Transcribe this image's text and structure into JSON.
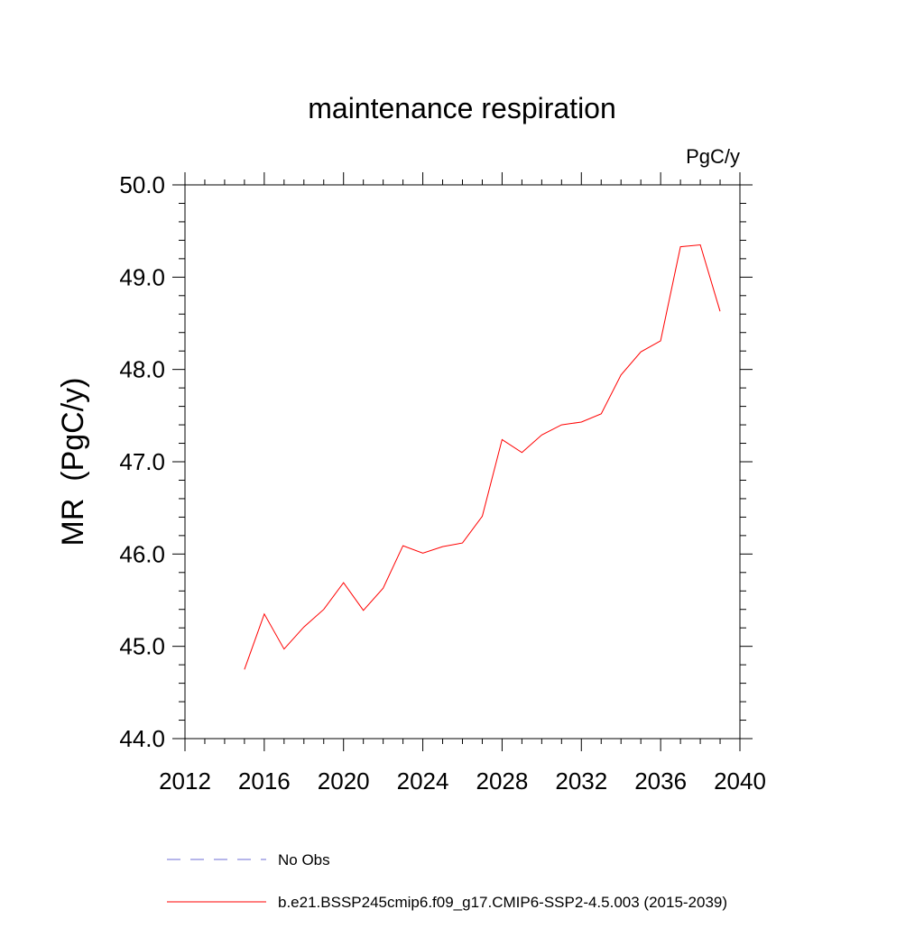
{
  "chart_data": {
    "type": "line",
    "title": "maintenance respiration",
    "units_label": "PgC/y",
    "xlabel": "",
    "ylabel": "MR  (PgC/y)",
    "xlim": [
      2012,
      2040
    ],
    "ylim": [
      44.0,
      50.0
    ],
    "x_ticks": [
      2012,
      2016,
      2020,
      2024,
      2028,
      2032,
      2036,
      2040
    ],
    "x_tick_labels": [
      "2012",
      "2016",
      "2020",
      "2024",
      "2028",
      "2032",
      "2036",
      "2040"
    ],
    "y_ticks": [
      44.0,
      45.0,
      46.0,
      47.0,
      48.0,
      49.0,
      50.0
    ],
    "y_tick_labels": [
      "44.0",
      "45.0",
      "46.0",
      "47.0",
      "48.0",
      "49.0",
      "50.0"
    ],
    "grid": false,
    "legend_position": "bottom",
    "series": [
      {
        "name": "b.e21.BSSP245cmip6.f09_g17.CMIP6-SSP2-4.5.003 (2015-2039)",
        "color": "#ff0000",
        "dash": "solid",
        "x": [
          2015,
          2016,
          2017,
          2018,
          2019,
          2020,
          2021,
          2022,
          2023,
          2024,
          2025,
          2026,
          2027,
          2028,
          2029,
          2030,
          2031,
          2032,
          2033,
          2034,
          2035,
          2036,
          2037,
          2038,
          2039
        ],
        "y": [
          44.75,
          45.35,
          44.97,
          45.21,
          45.4,
          45.69,
          45.39,
          45.63,
          46.09,
          46.01,
          46.08,
          46.12,
          46.41,
          47.24,
          47.1,
          47.29,
          47.4,
          47.43,
          47.52,
          47.94,
          48.19,
          48.31,
          49.33,
          49.35,
          48.63
        ]
      }
    ],
    "legend": [
      {
        "label": "No Obs",
        "color": "#6c6cd6",
        "dash": "dashed"
      },
      {
        "label": "b.e21.BSSP245cmip6.f09_g17.CMIP6-SSP2-4.5.003 (2015-2039)",
        "color": "#ff0000",
        "dash": "solid"
      }
    ]
  }
}
